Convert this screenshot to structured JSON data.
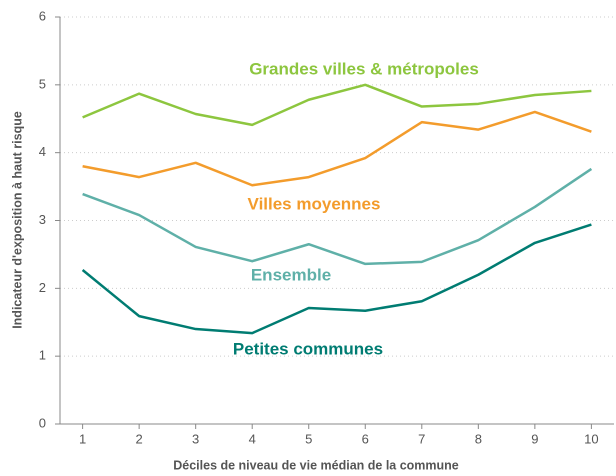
{
  "chart_data": {
    "type": "line",
    "xlabel": "Déciles de niveau de vie médian de la commune",
    "ylabel": "Indicateur d'exposition à haut risque",
    "x": [
      1,
      2,
      3,
      4,
      5,
      6,
      7,
      8,
      9,
      10
    ],
    "series": [
      {
        "name": "Grandes villes & métropoles",
        "color": "#8dc63f",
        "values": [
          4.52,
          4.87,
          4.57,
          4.41,
          4.78,
          5.0,
          4.68,
          4.72,
          4.85,
          4.91
        ]
      },
      {
        "name": "Villes moyennes",
        "color": "#f39c2c",
        "values": [
          3.8,
          3.64,
          3.85,
          3.52,
          3.64,
          3.92,
          4.45,
          4.34,
          4.6,
          4.31
        ]
      },
      {
        "name": "Ensemble",
        "color": "#5fb0a8",
        "values": [
          3.39,
          3.08,
          2.61,
          2.4,
          2.65,
          2.36,
          2.39,
          2.71,
          3.2,
          3.76
        ]
      },
      {
        "name": "Petites communes",
        "color": "#007c72",
        "values": [
          2.27,
          1.59,
          1.4,
          1.34,
          1.71,
          1.67,
          1.81,
          2.2,
          2.67,
          2.94
        ]
      }
    ],
    "xlim": [
      0.6,
      10.4
    ],
    "xticks": [
      1,
      2,
      3,
      4,
      5,
      6,
      7,
      8,
      9,
      10
    ],
    "ylim": [
      0,
      6
    ],
    "yticks": [
      0,
      1,
      2,
      3,
      4,
      5,
      6
    ],
    "grid": true
  }
}
